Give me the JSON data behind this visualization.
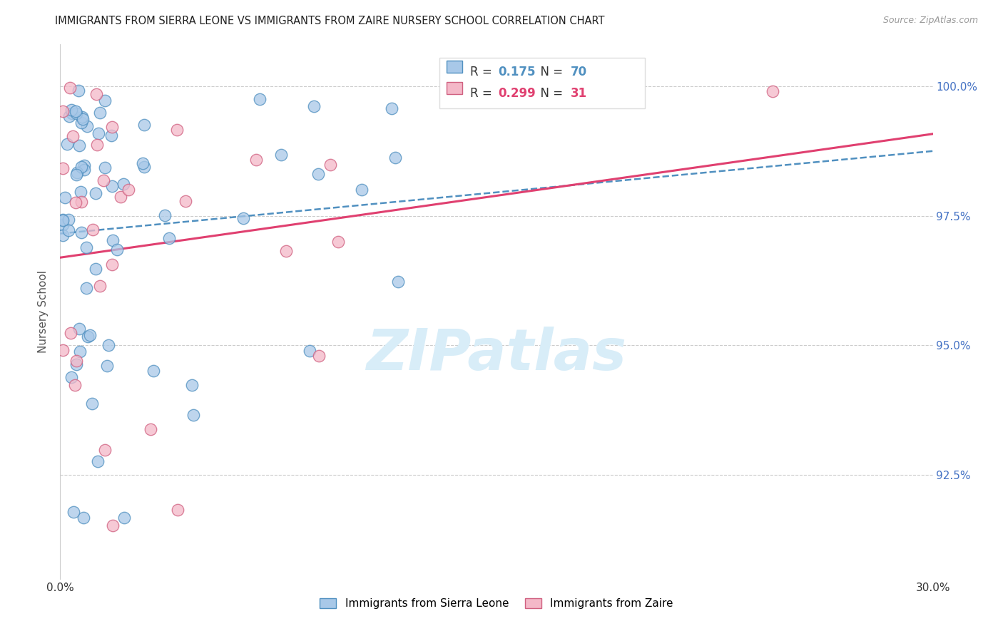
{
  "title": "IMMIGRANTS FROM SIERRA LEONE VS IMMIGRANTS FROM ZAIRE NURSERY SCHOOL CORRELATION CHART",
  "source": "Source: ZipAtlas.com",
  "ylabel": "Nursery School",
  "ytick_labels": [
    "100.0%",
    "97.5%",
    "95.0%",
    "92.5%"
  ],
  "ytick_values": [
    1.0,
    0.975,
    0.95,
    0.925
  ],
  "xmin": 0.0,
  "xmax": 0.3,
  "ymin": 0.905,
  "ymax": 1.008,
  "legend_blue_label": "Immigrants from Sierra Leone",
  "legend_pink_label": "Immigrants from Zaire",
  "r_blue": "0.175",
  "n_blue": "70",
  "r_pink": "0.299",
  "n_pink": "31",
  "blue_fill": "#a8c8e8",
  "blue_edge": "#5090c0",
  "pink_fill": "#f4b8c8",
  "pink_edge": "#d06080",
  "trendline_blue": "#5090c0",
  "trendline_pink": "#e04070",
  "watermark_color": "#d8edf8",
  "grid_color": "#cccccc",
  "right_tick_color": "#4472c4"
}
